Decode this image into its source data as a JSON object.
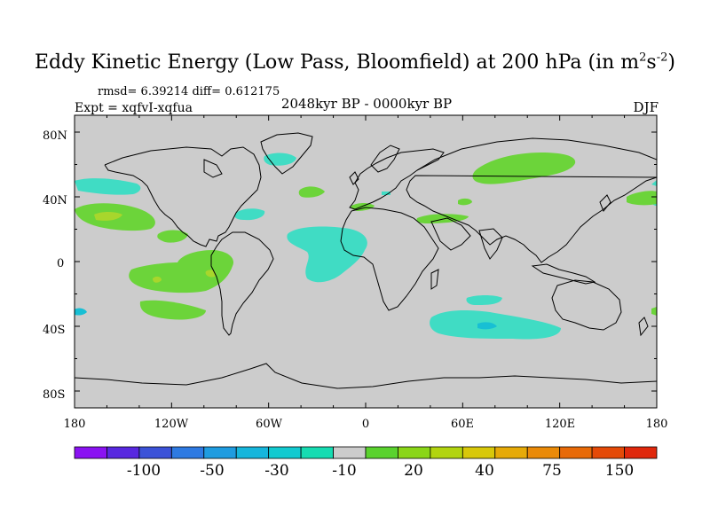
{
  "title": {
    "main": "Eddy Kinetic Energy (Low Pass, Bloomfield) at 200 hPa (in m",
    "sup1": "2",
    "mid": "s",
    "sup2": "-2",
    "end": ")"
  },
  "stats": "rmsd= 6.39214 diff= 0.612175",
  "expt": "Expt = xqfvI-xqfua",
  "period": "2048kyr BP - 0000kyr BP",
  "season": "DJF",
  "lat_ticks": [
    "80N",
    "40N",
    "0",
    "40S",
    "80S"
  ],
  "lon_ticks": [
    "180",
    "120W",
    "60W",
    "0",
    "60E",
    "120E",
    "180"
  ],
  "colorbar": {
    "colors": [
      "#8a12f2",
      "#5828e0",
      "#3b52d8",
      "#2e7ae2",
      "#1f9ce0",
      "#16b6dc",
      "#12cad0",
      "#16dcb2",
      "#cccccc",
      "#5ad22e",
      "#8ad618",
      "#b2d410",
      "#d8c80a",
      "#e6aa08",
      "#ea8a08",
      "#e86a08",
      "#e44a08",
      "#e0280c"
    ],
    "labels": [
      "-100",
      "-50",
      "-30",
      "-10",
      "20",
      "40",
      "75",
      "150"
    ]
  },
  "colors": {
    "land_ocean": "#cccccc",
    "coast": "#000000",
    "neg_anomaly": "#40dcc4",
    "pos_anomaly": "#6cd43a",
    "pos_anomaly_strong": "#a8d62c",
    "neg_anomaly_strong": "#18bfd4"
  }
}
